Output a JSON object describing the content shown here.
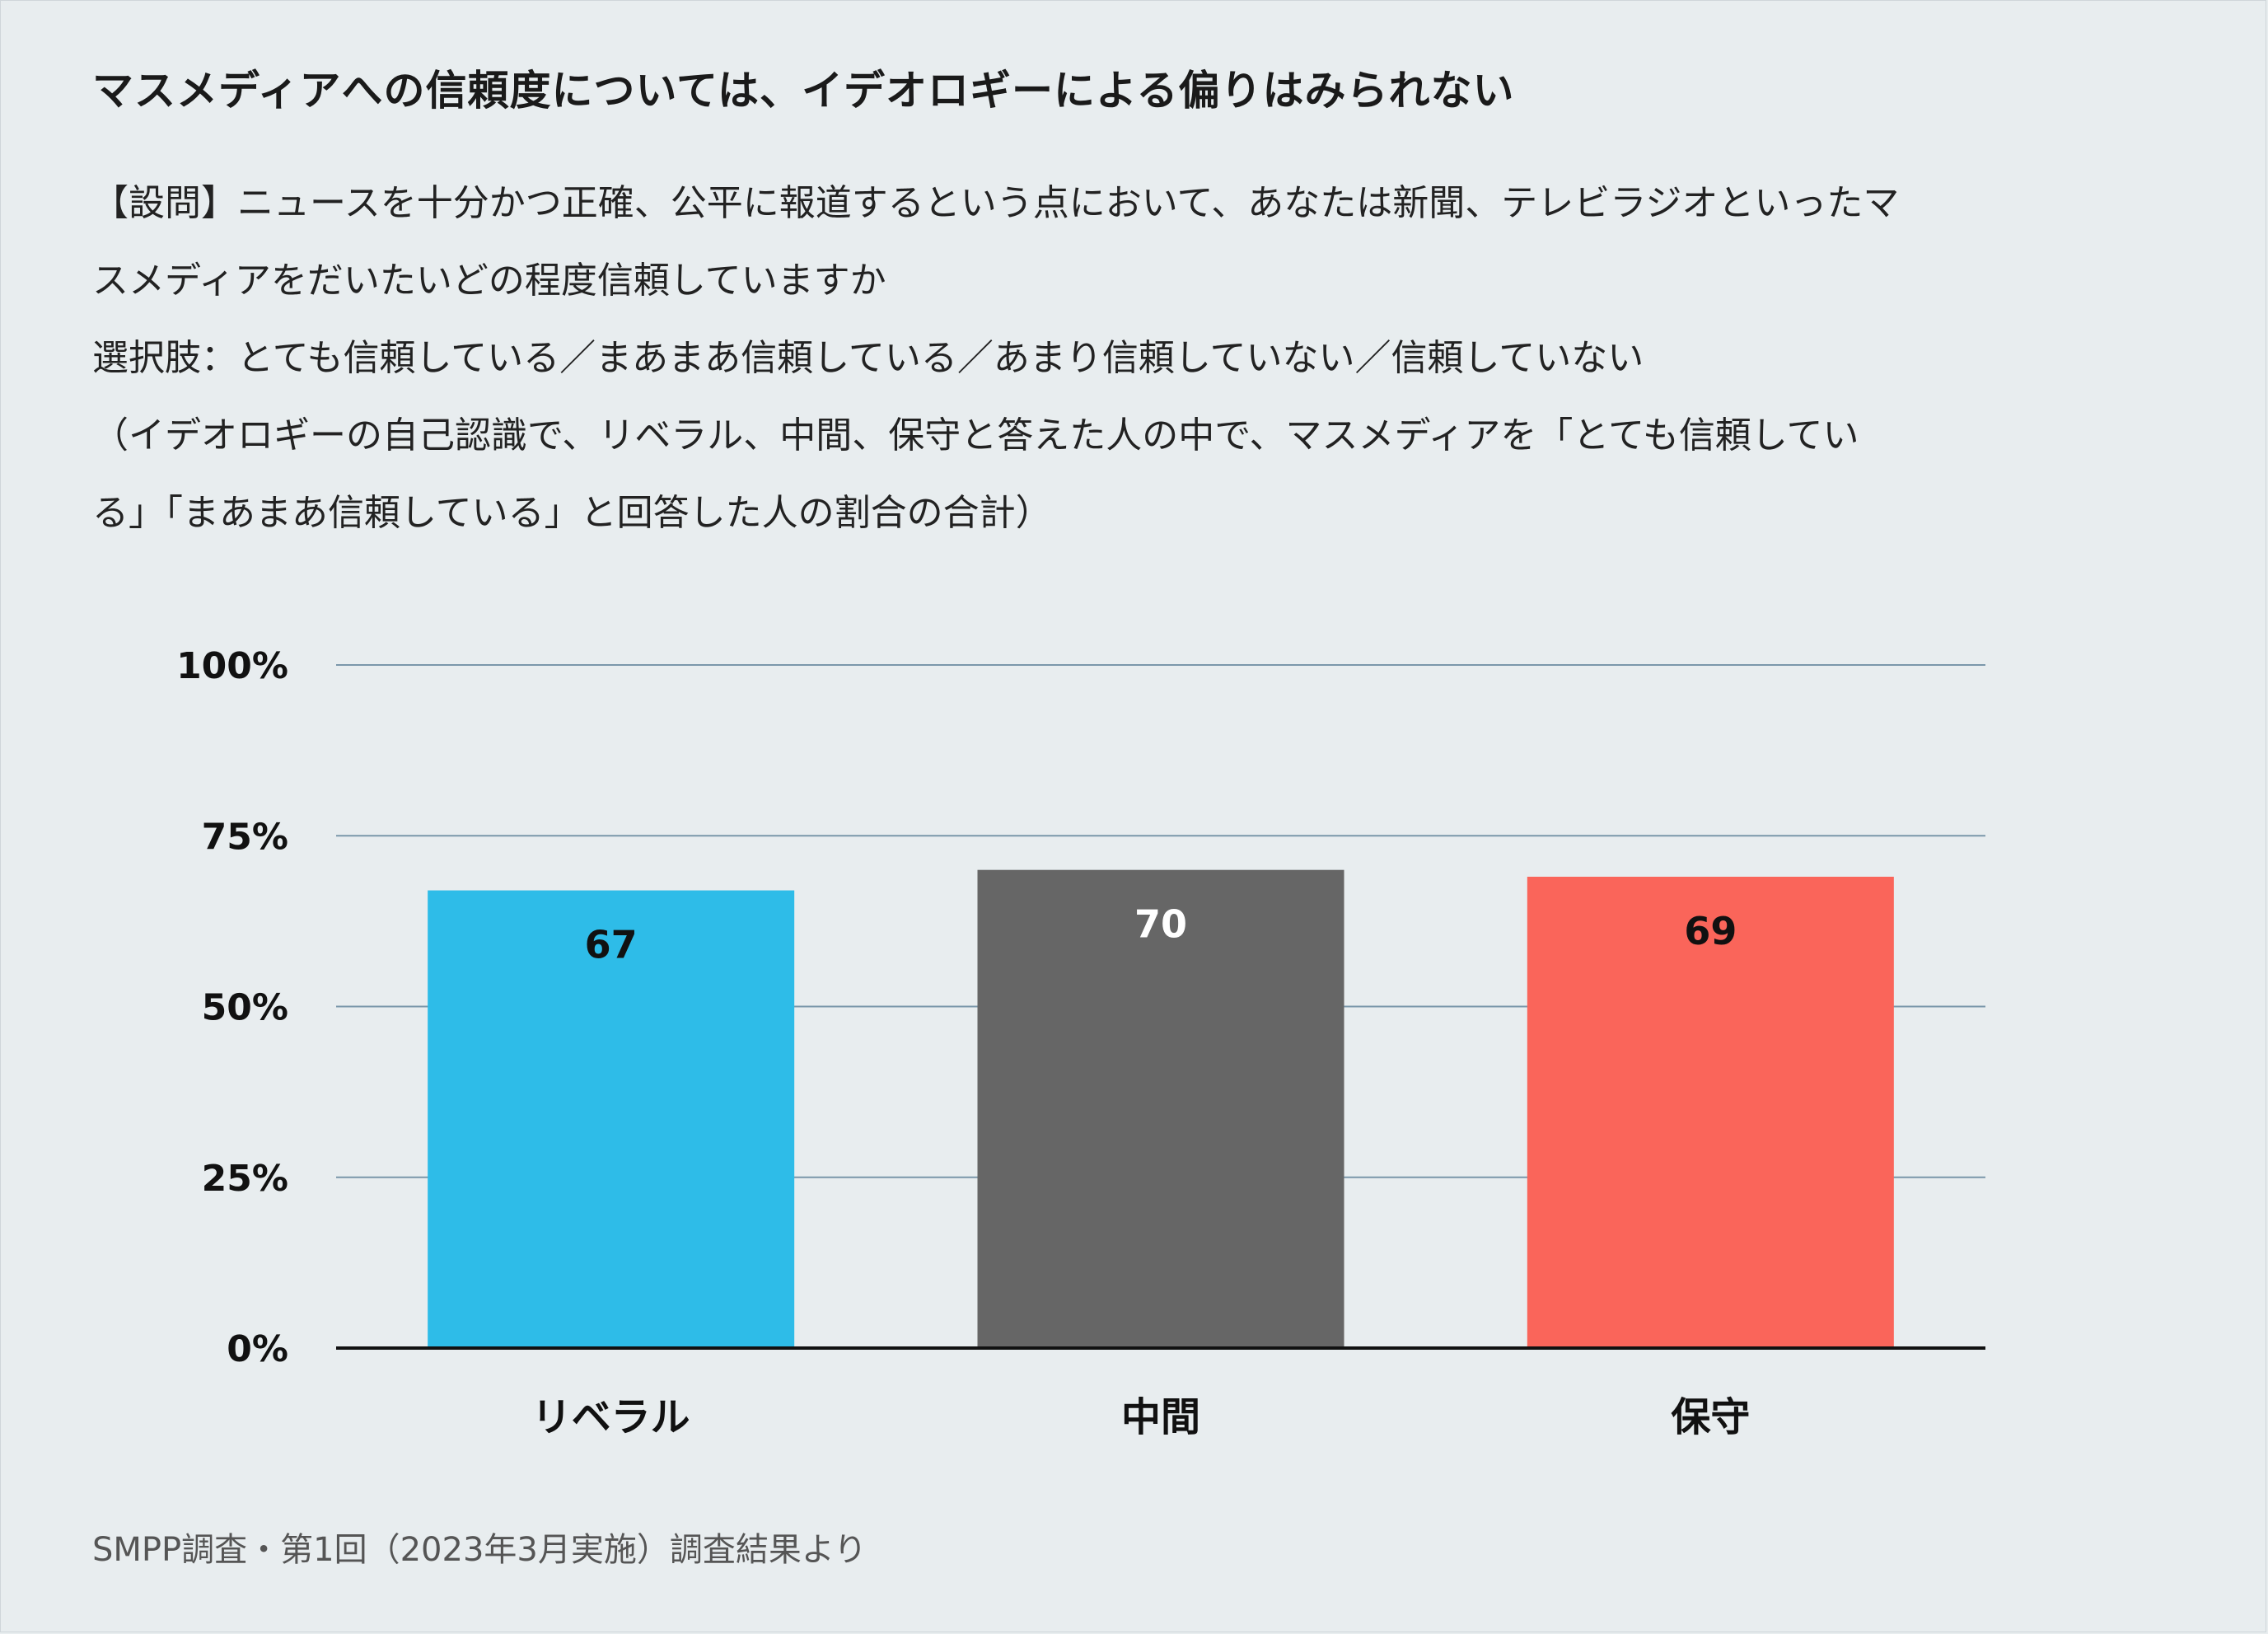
{
  "title": "マスメディアへの信頼度については、イデオロギーによる偏りはみられない",
  "question_lines": [
    "【設問】ニュースを十分かつ正確、公平に報道するという点において、あなたは新聞、テレビラジオといったマ",
    "スメディアをだいたいどの程度信頼していますか",
    "選択肢：とても信頼している／まあまあ信頼している／あまり信頼していない／信頼していない",
    "（イデオロギーの自己認識で、リベラル、中間、保守と答えた人の中で、マスメディアを「とても信頼してい",
    "る」「まあまあ信頼している」と回答した人の割合の合計）"
  ],
  "source": "SMPP調査・第1回（2023年3月実施）調査結果より",
  "chart_data": {
    "type": "bar",
    "categories": [
      "リベラル",
      "中間",
      "保守"
    ],
    "values": [
      67,
      70,
      69
    ],
    "value_labels": [
      "67",
      "70",
      "69"
    ],
    "colors": [
      "#2ebce8",
      "#666666",
      "#fa655a"
    ],
    "value_label_colors": [
      "#111111",
      "#ffffff",
      "#111111"
    ],
    "ylim": [
      0,
      100
    ],
    "yticks": [
      0,
      25,
      50,
      75,
      100
    ],
    "ytick_labels": [
      "0%",
      "25%",
      "50%",
      "75%",
      "100%"
    ],
    "gridlines": true,
    "grid_color": "#7a97aa",
    "axis_color": "#111111"
  }
}
